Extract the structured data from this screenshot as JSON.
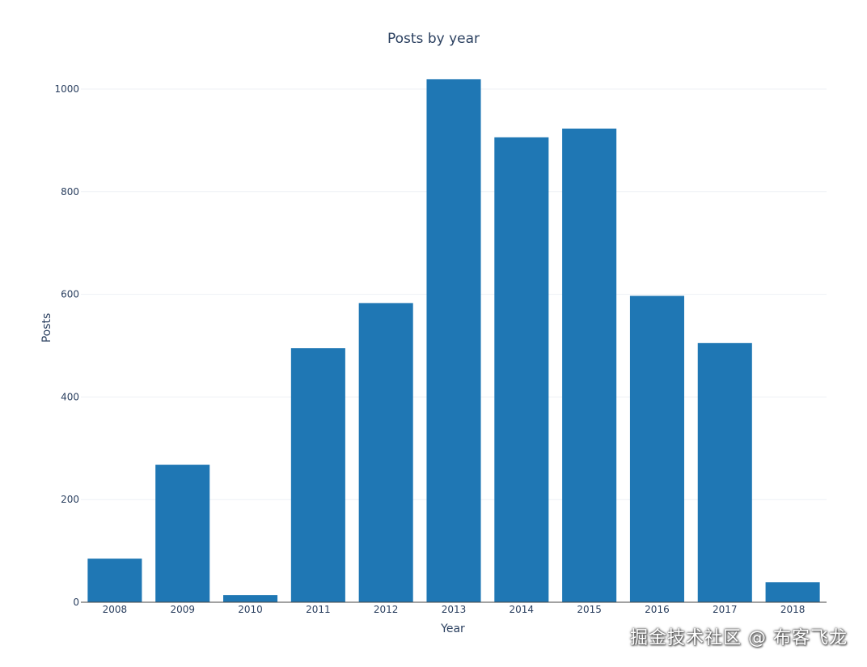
{
  "chart_data": {
    "type": "bar",
    "title": "Posts by year",
    "xlabel": "Year",
    "ylabel": "Posts",
    "categories": [
      "2008",
      "2009",
      "2010",
      "2011",
      "2012",
      "2013",
      "2014",
      "2015",
      "2016",
      "2017",
      "2018"
    ],
    "values": [
      85,
      268,
      14,
      495,
      583,
      1019,
      906,
      923,
      597,
      505,
      39
    ],
    "ylim": [
      0,
      1000
    ],
    "yticks": [
      0,
      200,
      400,
      600,
      800,
      1000
    ],
    "grid": true,
    "legend": false,
    "bar_color": "#1f77b4"
  },
  "watermark": "掘金技术社区 @ 布客飞龙"
}
